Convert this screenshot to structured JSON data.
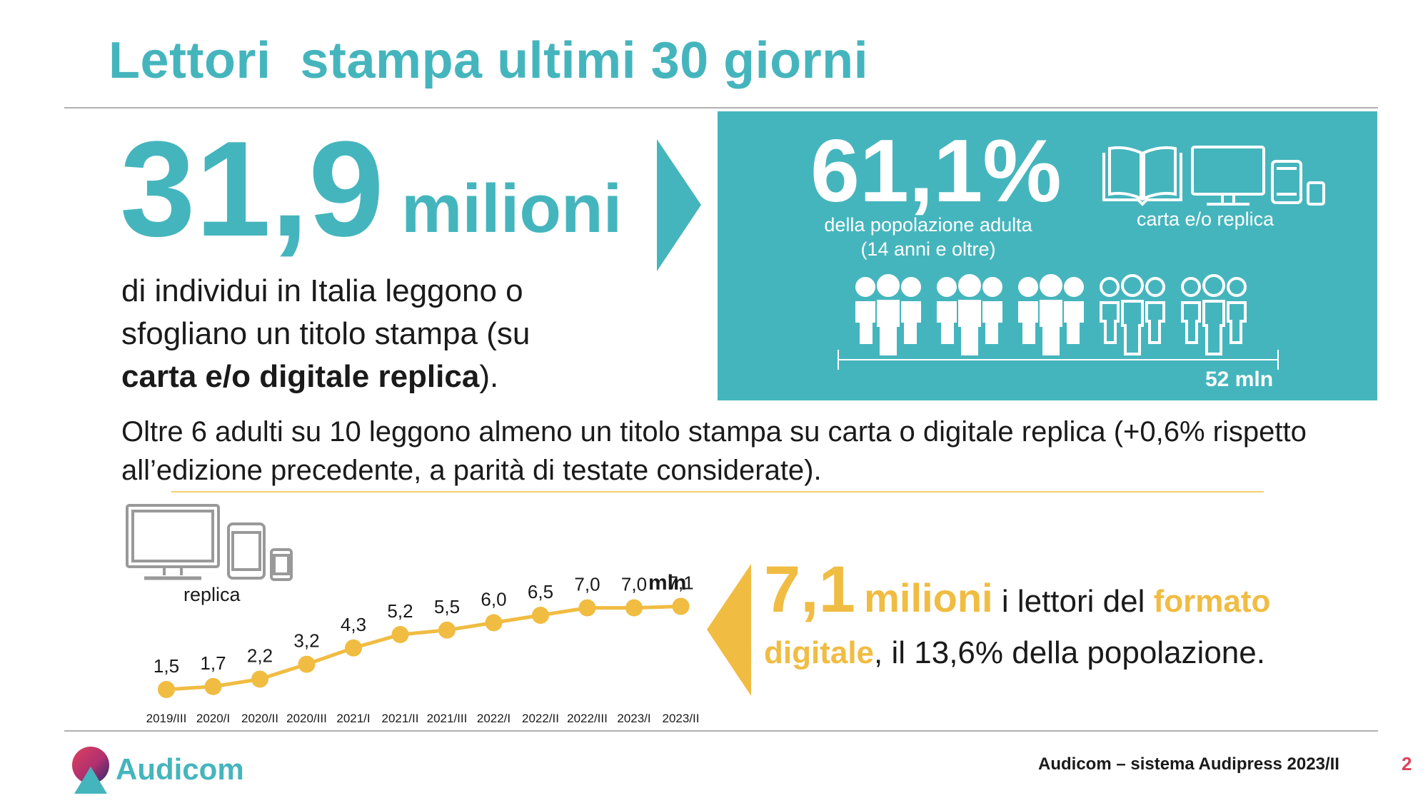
{
  "title": "Lettori  stampa ultimi 30 giorni",
  "main": {
    "big_number": "31,9",
    "big_unit": "milioni",
    "desc_line1": "di individui in Italia leggono o",
    "desc_line2": "sfogliano un titolo stampa (su",
    "desc_bold": "carta e/o digitale replica",
    "desc_tail": ")."
  },
  "panel": {
    "percent": "61,1%",
    "percent_sub1": "della popolazione adulta",
    "percent_sub2": "(14 anni e oltre)",
    "devices_label": "carta e/o replica",
    "population_label": "52 mln",
    "people_total": 5,
    "people_filled": 3
  },
  "paragraph": "Oltre 6 adulti su 10 leggono almeno un titolo stampa su carta o digitale replica (+0,6% rispetto all’edizione precedente, a parità di testate considerate).",
  "digital": {
    "number": "7,1",
    "unit": "milioni",
    "text1": " i lettori del ",
    "highlight1": "formato",
    "highlight2": "digitale",
    "text2": ", il 13,6% della popolazione."
  },
  "chart_icon_label": "replica",
  "chart_data": {
    "type": "line",
    "categories": [
      "2019/III",
      "2020/I",
      "2020/II",
      "2020/III",
      "2021/I",
      "2021/II",
      "2021/III",
      "2022/I",
      "2022/II",
      "2022/III",
      "2023/I",
      "2023/II"
    ],
    "values": [
      1.5,
      1.7,
      2.2,
      3.2,
      4.3,
      5.2,
      5.5,
      6.0,
      6.5,
      7.0,
      7.0,
      7.1
    ],
    "labels": [
      "1,5",
      "1,7",
      "2,2",
      "3,2",
      "4,3",
      "5,2",
      "5,5",
      "6,0",
      "6,5",
      "7,0",
      "7,0",
      "7,1"
    ],
    "unit": "mln",
    "color": "#f0bc42"
  },
  "footer": {
    "source": "Audicom – sistema Audipress 2023/II",
    "page": "2",
    "brand": "Audicom"
  },
  "colors": {
    "teal": "#45b5bd",
    "gold": "#f0bc42",
    "page_number": "#e0405a"
  }
}
